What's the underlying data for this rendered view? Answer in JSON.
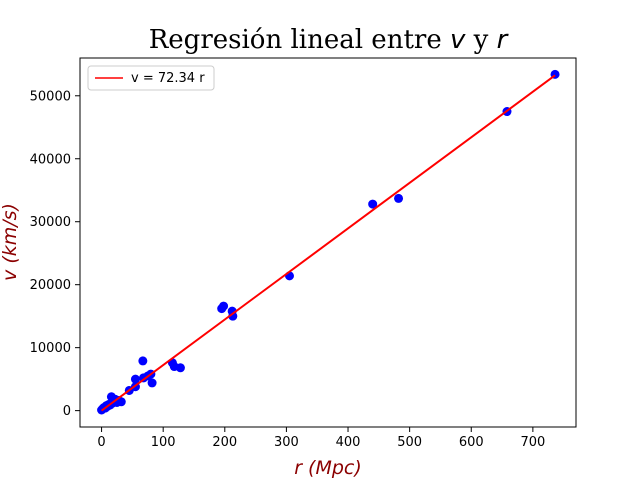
{
  "chart_data": {
    "type": "scatter",
    "title_prefix": "Regresión lineal entre ",
    "title_v": "v",
    "title_mid": " y ",
    "title_r": "r",
    "xlabel": "r (Mpc)",
    "ylabel": "v (km/s)",
    "xlim": [
      -35,
      770
    ],
    "ylim": [
      -2600,
      56000
    ],
    "xticks": [
      0,
      100,
      200,
      300,
      400,
      500,
      600,
      700
    ],
    "yticks": [
      0,
      10000,
      20000,
      30000,
      40000,
      50000
    ],
    "grid": false,
    "legend_position": "top-left",
    "colors": {
      "points": "#0000ff",
      "line": "#ff0000",
      "labels": "#8b0000"
    },
    "series": [
      {
        "kind": "scatter",
        "x": [
          0,
          2,
          4,
          6,
          8,
          10,
          12,
          14,
          16,
          18,
          20,
          22,
          25,
          28,
          32,
          45,
          55,
          55,
          67,
          68,
          75,
          80,
          82,
          115,
          118,
          128,
          195,
          198,
          212,
          213,
          305,
          440,
          482,
          658,
          736
        ],
        "y": [
          100,
          300,
          500,
          400,
          800,
          700,
          1000,
          900,
          2200,
          1200,
          1500,
          1800,
          1300,
          1600,
          1400,
          3200,
          5000,
          3800,
          7900,
          5200,
          5500,
          5800,
          4400,
          7600,
          7000,
          6800,
          16200,
          16600,
          15800,
          15000,
          21400,
          32800,
          33700,
          47500,
          53400
        ]
      },
      {
        "kind": "line",
        "name": "v = 72.34 r",
        "slope": 72.34,
        "x": [
          0,
          736
        ]
      }
    ]
  }
}
